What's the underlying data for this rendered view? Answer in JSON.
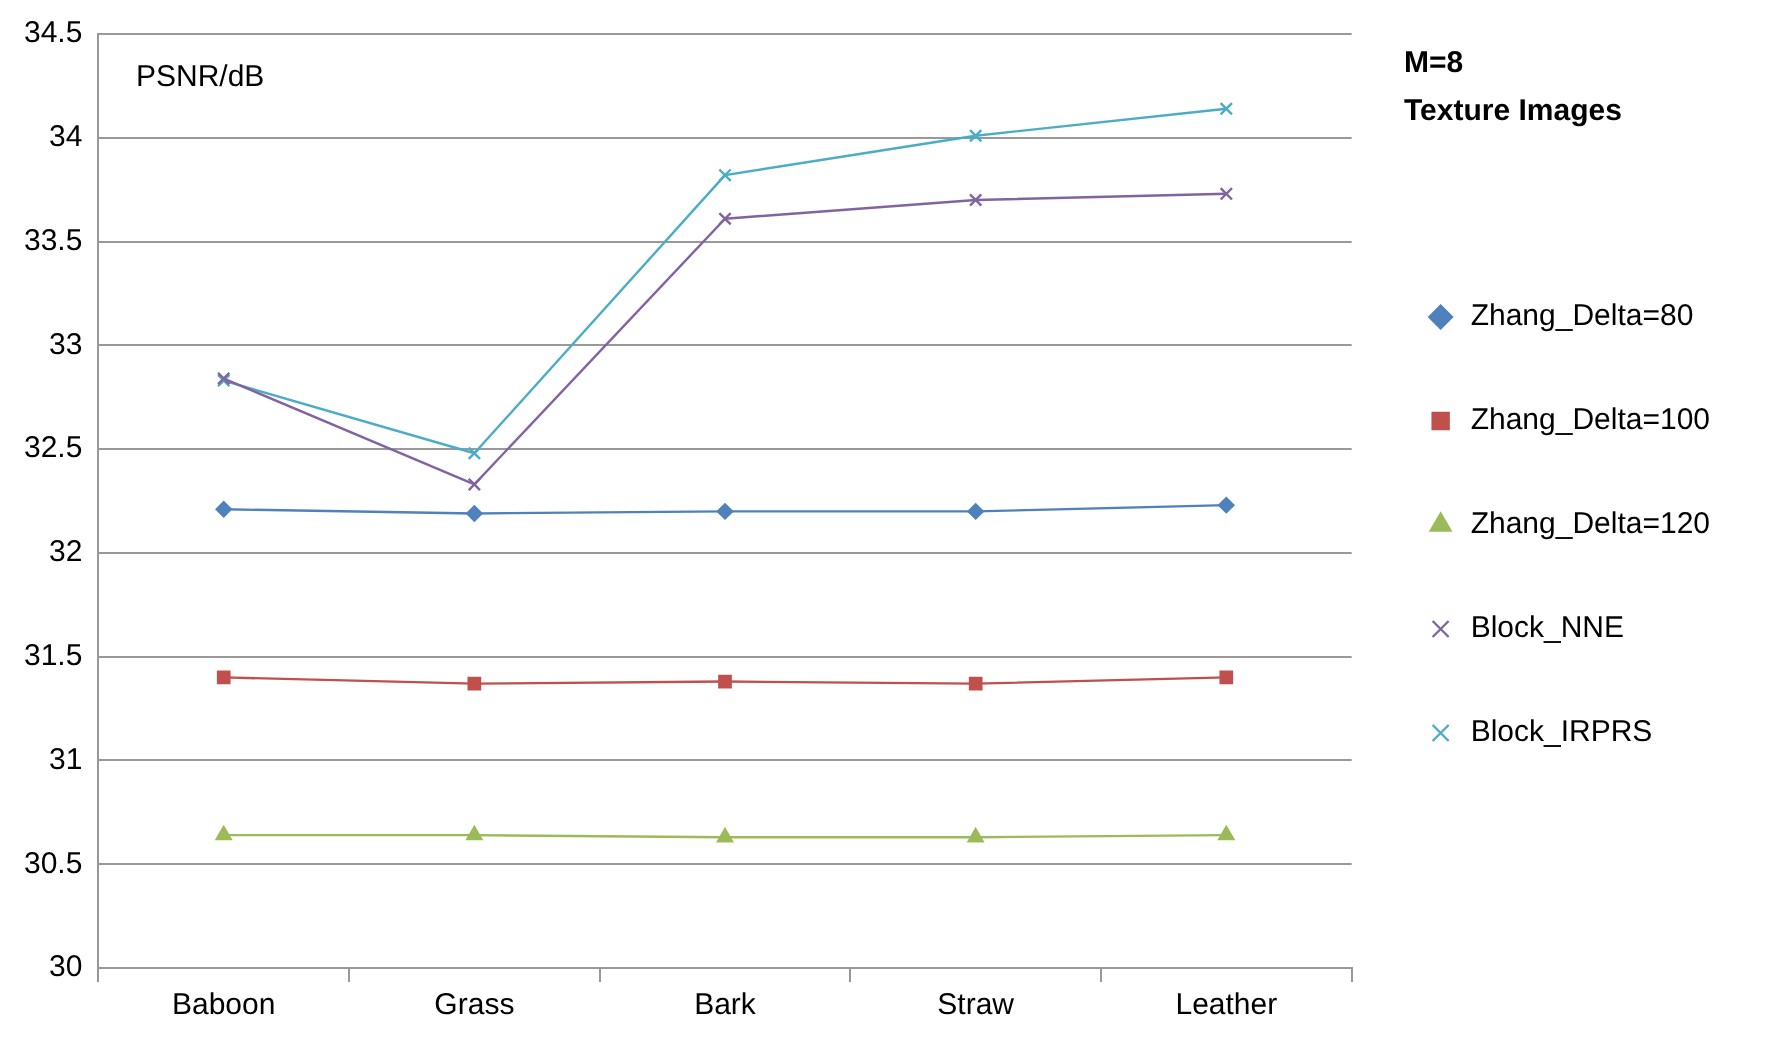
{
  "chart_data": {
    "type": "line",
    "title": "M=8\nTexture Images",
    "ylabel": "PSNR/dB",
    "categories": [
      "Baboon",
      "Grass",
      "Bark",
      "Straw",
      "Leather"
    ],
    "series": [
      {
        "name": "Zhang_Delta=80",
        "color": "#4f81bd",
        "marker": "diamond",
        "values": [
          32.21,
          32.19,
          32.2,
          32.2,
          32.23
        ]
      },
      {
        "name": "Zhang_Delta=100",
        "color": "#c0504d",
        "marker": "square",
        "values": [
          31.4,
          31.37,
          31.38,
          31.37,
          31.4
        ]
      },
      {
        "name": "Zhang_Delta=120",
        "color": "#9bbb59",
        "marker": "triangle",
        "values": [
          30.64,
          30.64,
          30.63,
          30.63,
          30.64
        ]
      },
      {
        "name": "Block_NNE",
        "color": "#8064a2",
        "marker": "cross",
        "values": [
          32.84,
          32.33,
          33.61,
          33.7,
          33.73
        ]
      },
      {
        "name": "Block_IRPRS",
        "color": "#4bacc6",
        "marker": "cross",
        "values": [
          32.83,
          32.48,
          33.82,
          34.01,
          34.14
        ]
      }
    ],
    "ylim": [
      30,
      34.5
    ],
    "yticks": [
      30,
      30.5,
      31,
      31.5,
      32,
      32.5,
      33,
      33.5,
      34,
      34.5
    ],
    "grid": "y",
    "legend": "right"
  }
}
